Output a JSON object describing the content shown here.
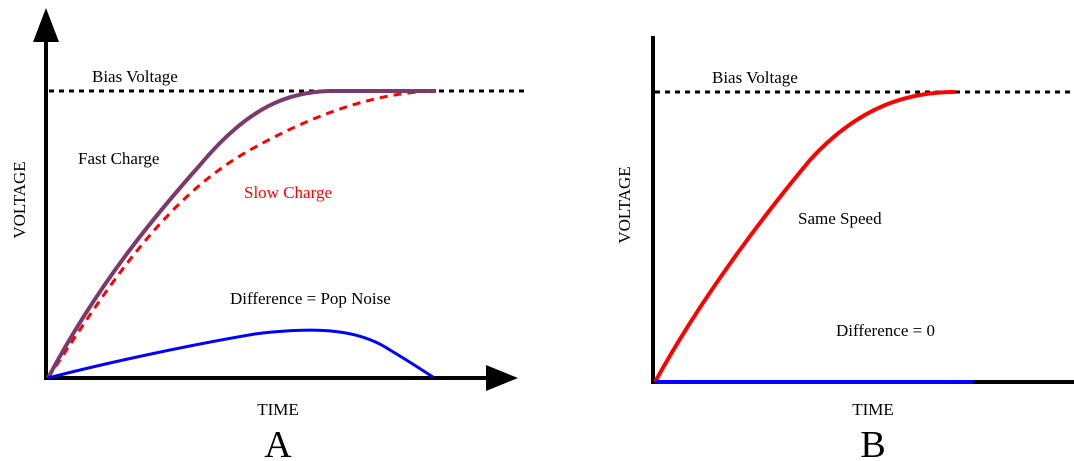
{
  "panels": {
    "a": {
      "letter": "A",
      "x_axis_label": "TIME",
      "y_axis_label": "VOLTAGE",
      "bias_label": "Bias Voltage",
      "fast_label": "Fast Charge",
      "slow_label": "Slow Charge",
      "difference_label": "Difference = Pop Noise"
    },
    "b": {
      "letter": "B",
      "x_axis_label": "TIME",
      "y_axis_label": "VOLTAGE",
      "bias_label": "Bias Voltage",
      "same_label": "Same Speed",
      "difference_label": "Difference = 0"
    }
  },
  "colors": {
    "fast_curve": "#7b3a6b",
    "slow_curve": "#ff0000",
    "same_curve": "#ff0000",
    "difference_curve": "#0000ff",
    "axis": "#000000",
    "bias_line": "#000000"
  }
}
